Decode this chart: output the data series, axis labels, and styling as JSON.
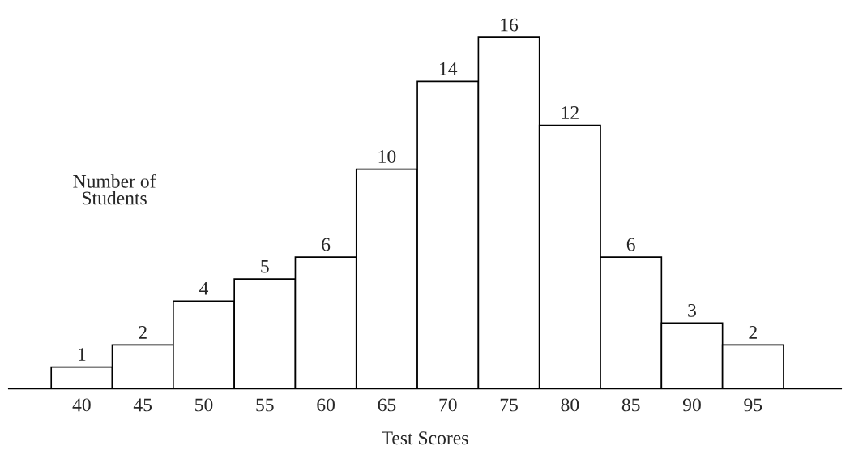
{
  "chart_data": {
    "type": "bar",
    "xlabel": "Test Scores",
    "ylabel": "Number of\nStudents",
    "categories": [
      "40",
      "45",
      "50",
      "55",
      "60",
      "65",
      "70",
      "75",
      "80",
      "85",
      "90",
      "95"
    ],
    "values": [
      1,
      2,
      4,
      5,
      6,
      10,
      14,
      16,
      12,
      6,
      3,
      2
    ],
    "color": "#ffffff",
    "data_labels": true,
    "tick_labels": "x"
  }
}
